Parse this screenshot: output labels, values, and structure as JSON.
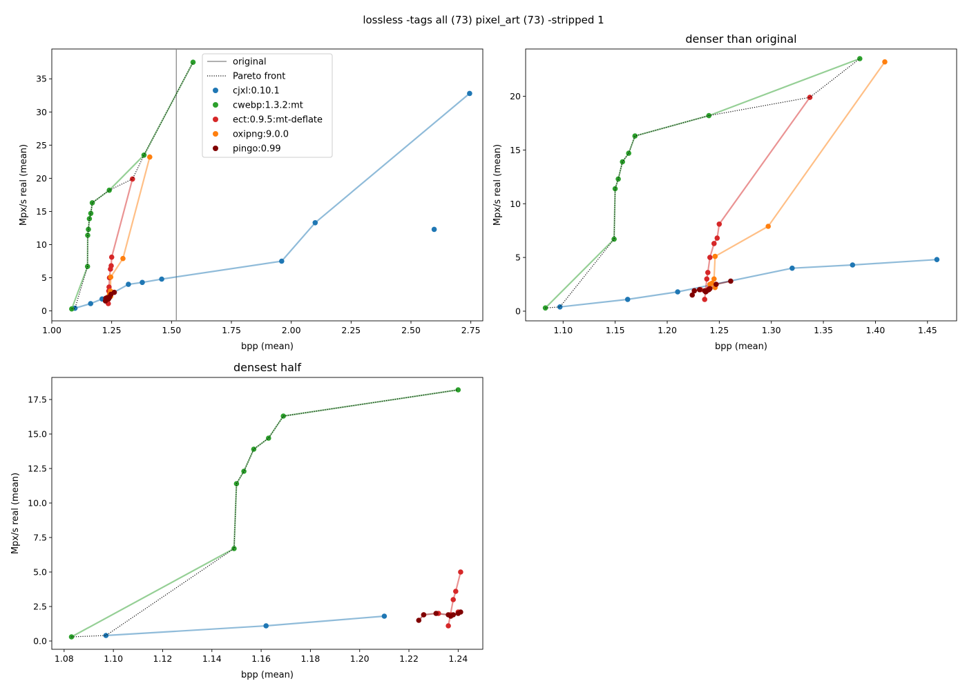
{
  "figure": {
    "suptitle": "lossless -tags all (73) pixel_art (73) -stripped 1"
  },
  "colors": {
    "cjxl": "#1f77b4",
    "cwebp": "#2ca02c",
    "ect": "#d62728",
    "oxipng": "#ff7f0e",
    "pingo": "#800000",
    "original": "#808080",
    "pareto": "#000000"
  },
  "legend": {
    "original": "original",
    "pareto": "Pareto front",
    "cjxl": "cjxl:0.10.1",
    "cwebp": "cwebp:1.3.2:mt",
    "ect": "ect:0.9.5:mt-deflate",
    "oxipng": "oxipng:9.0.0",
    "pingo": "pingo:0.99"
  },
  "chart_data": [
    {
      "type": "line",
      "title": "",
      "xlabel": "bpp (mean)",
      "ylabel": "Mpx/s real (mean)",
      "xlim": [
        1.0,
        2.8
      ],
      "ylim": [
        -1.5,
        39.5
      ],
      "xticks": [
        "1.00",
        "1.25",
        "1.50",
        "1.75",
        "2.00",
        "2.25",
        "2.50",
        "2.75"
      ],
      "yticks": [
        "0",
        "5",
        "10",
        "15",
        "20",
        "25",
        "30",
        "35"
      ],
      "original_bpp": 1.52,
      "legend_position": "upper center",
      "series": [
        {
          "name": "cjxl:0.10.1",
          "key": "cjxl",
          "line": [
            [
              1.097,
              0.4
            ],
            [
              1.162,
              1.1
            ],
            [
              1.21,
              1.8
            ],
            [
              1.32,
              4.0
            ],
            [
              1.378,
              4.3
            ],
            [
              1.459,
              4.8
            ],
            [
              1.96,
              7.5
            ],
            [
              2.1,
              13.3
            ],
            [
              2.745,
              32.8
            ]
          ],
          "extra": [
            [
              2.597,
              12.3
            ]
          ]
        },
        {
          "name": "cwebp:1.3.2:mt",
          "key": "cwebp",
          "line": [
            [
              1.083,
              0.3
            ],
            [
              1.149,
              6.7
            ],
            [
              1.15,
              11.4
            ],
            [
              1.153,
              12.3
            ],
            [
              1.157,
              13.9
            ],
            [
              1.163,
              14.7
            ],
            [
              1.169,
              16.3
            ],
            [
              1.24,
              18.2
            ],
            [
              1.385,
              23.5
            ],
            [
              1.59,
              37.5
            ]
          ],
          "extra": []
        },
        {
          "name": "ect:0.9.5:mt-deflate",
          "key": "ect",
          "line": [
            [
              1.236,
              1.1
            ],
            [
              1.238,
              3.0
            ],
            [
              1.239,
              3.6
            ],
            [
              1.241,
              5.0
            ],
            [
              1.245,
              6.3
            ],
            [
              1.248,
              6.8
            ],
            [
              1.25,
              8.1
            ],
            [
              1.337,
              19.9
            ]
          ],
          "extra": [
            [
              1.226,
              1.9
            ],
            [
              1.232,
              2.0
            ],
            [
              1.237,
              1.9
            ],
            [
              1.24,
              2.1
            ]
          ]
        },
        {
          "name": "oxipng:9.0.0",
          "key": "oxipng",
          "line": [
            [
              1.241,
              2.5
            ],
            [
              1.245,
              3.0
            ],
            [
              1.246,
              5.1
            ],
            [
              1.297,
              7.9
            ],
            [
              1.409,
              23.2
            ]
          ],
          "extra": [
            [
              1.243,
              2.6
            ],
            [
              1.246,
              2.2
            ]
          ]
        },
        {
          "name": "pingo:0.99",
          "key": "pingo",
          "line": [
            [
              1.224,
              1.5
            ],
            [
              1.226,
              1.9
            ],
            [
              1.231,
              2.0
            ],
            [
              1.236,
              1.9
            ],
            [
              1.237,
              1.8
            ],
            [
              1.238,
              1.9
            ],
            [
              1.24,
              2.0
            ],
            [
              1.241,
              2.1
            ],
            [
              1.247,
              2.5
            ],
            [
              1.261,
              2.8
            ]
          ],
          "extra": []
        },
        {
          "name": "Pareto front",
          "key": "pareto",
          "line": [
            [
              1.083,
              0.3
            ],
            [
              1.097,
              0.4
            ],
            [
              1.149,
              6.7
            ],
            [
              1.15,
              11.4
            ],
            [
              1.153,
              12.3
            ],
            [
              1.157,
              13.9
            ],
            [
              1.163,
              14.7
            ],
            [
              1.169,
              16.3
            ],
            [
              1.24,
              18.2
            ],
            [
              1.337,
              19.9
            ],
            [
              1.385,
              23.5
            ],
            [
              1.59,
              37.5
            ]
          ],
          "extra": []
        }
      ]
    },
    {
      "type": "line",
      "title": "denser than original",
      "xlabel": "bpp (mean)",
      "ylabel": "Mpx/s real (mean)",
      "xlim": [
        1.064,
        1.478
      ],
      "ylim": [
        -0.9,
        24.4
      ],
      "xticks": [
        "1.10",
        "1.15",
        "1.20",
        "1.25",
        "1.30",
        "1.35",
        "1.40",
        "1.45"
      ],
      "yticks": [
        "0",
        "5",
        "10",
        "15",
        "20"
      ],
      "series": [
        {
          "name": "cjxl:0.10.1",
          "key": "cjxl",
          "line": [
            [
              1.097,
              0.4
            ],
            [
              1.162,
              1.1
            ],
            [
              1.21,
              1.8
            ],
            [
              1.32,
              4.0
            ],
            [
              1.378,
              4.3
            ],
            [
              1.459,
              4.8
            ]
          ],
          "extra": []
        },
        {
          "name": "cwebp:1.3.2:mt",
          "key": "cwebp",
          "line": [
            [
              1.083,
              0.3
            ],
            [
              1.149,
              6.7
            ],
            [
              1.15,
              11.4
            ],
            [
              1.153,
              12.3
            ],
            [
              1.157,
              13.9
            ],
            [
              1.163,
              14.7
            ],
            [
              1.169,
              16.3
            ],
            [
              1.24,
              18.2
            ],
            [
              1.385,
              23.5
            ]
          ],
          "extra": []
        },
        {
          "name": "ect:0.9.5:mt-deflate",
          "key": "ect",
          "line": [
            [
              1.236,
              1.1
            ],
            [
              1.238,
              3.0
            ],
            [
              1.239,
              3.6
            ],
            [
              1.241,
              5.0
            ],
            [
              1.245,
              6.3
            ],
            [
              1.248,
              6.8
            ],
            [
              1.25,
              8.1
            ],
            [
              1.337,
              19.9
            ]
          ],
          "extra": [
            [
              1.226,
              1.9
            ],
            [
              1.232,
              2.0
            ],
            [
              1.237,
              1.9
            ],
            [
              1.24,
              2.1
            ]
          ]
        },
        {
          "name": "oxipng:9.0.0",
          "key": "oxipng",
          "line": [
            [
              1.241,
              2.5
            ],
            [
              1.245,
              3.0
            ],
            [
              1.246,
              5.1
            ],
            [
              1.297,
              7.9
            ],
            [
              1.409,
              23.2
            ]
          ],
          "extra": [
            [
              1.243,
              2.6
            ],
            [
              1.246,
              2.2
            ]
          ]
        },
        {
          "name": "pingo:0.99",
          "key": "pingo",
          "line": [
            [
              1.224,
              1.5
            ],
            [
              1.226,
              1.9
            ],
            [
              1.231,
              2.0
            ],
            [
              1.236,
              1.9
            ],
            [
              1.237,
              1.8
            ],
            [
              1.238,
              1.9
            ],
            [
              1.24,
              2.0
            ],
            [
              1.241,
              2.1
            ],
            [
              1.247,
              2.5
            ],
            [
              1.261,
              2.8
            ]
          ],
          "extra": []
        },
        {
          "name": "Pareto front",
          "key": "pareto",
          "line": [
            [
              1.083,
              0.3
            ],
            [
              1.097,
              0.4
            ],
            [
              1.149,
              6.7
            ],
            [
              1.15,
              11.4
            ],
            [
              1.153,
              12.3
            ],
            [
              1.157,
              13.9
            ],
            [
              1.163,
              14.7
            ],
            [
              1.169,
              16.3
            ],
            [
              1.24,
              18.2
            ],
            [
              1.337,
              19.9
            ],
            [
              1.385,
              23.5
            ]
          ],
          "extra": []
        }
      ]
    },
    {
      "type": "line",
      "title": "densest half",
      "xlabel": "bpp (mean)",
      "ylabel": "Mpx/s real (mean)",
      "xlim": [
        1.075,
        1.25
      ],
      "ylim": [
        -0.6,
        19.1
      ],
      "xticks": [
        "1.08",
        "1.10",
        "1.12",
        "1.14",
        "1.16",
        "1.18",
        "1.20",
        "1.22",
        "1.24"
      ],
      "yticks": [
        "0.0",
        "2.5",
        "5.0",
        "7.5",
        "10.0",
        "12.5",
        "15.0",
        "17.5"
      ],
      "series": [
        {
          "name": "cjxl:0.10.1",
          "key": "cjxl",
          "line": [
            [
              1.097,
              0.4
            ],
            [
              1.162,
              1.1
            ],
            [
              1.21,
              1.8
            ]
          ],
          "extra": []
        },
        {
          "name": "cwebp:1.3.2:mt",
          "key": "cwebp",
          "line": [
            [
              1.083,
              0.3
            ],
            [
              1.149,
              6.7
            ],
            [
              1.15,
              11.4
            ],
            [
              1.153,
              12.3
            ],
            [
              1.157,
              13.9
            ],
            [
              1.163,
              14.7
            ],
            [
              1.169,
              16.3
            ],
            [
              1.24,
              18.2
            ]
          ],
          "extra": []
        },
        {
          "name": "ect:0.9.5:mt-deflate",
          "key": "ect",
          "line": [
            [
              1.236,
              1.1
            ],
            [
              1.238,
              3.0
            ],
            [
              1.239,
              3.6
            ],
            [
              1.241,
              5.0
            ]
          ],
          "extra": [
            [
              1.226,
              1.9
            ],
            [
              1.232,
              2.0
            ],
            [
              1.237,
              1.9
            ],
            [
              1.24,
              2.1
            ]
          ]
        },
        {
          "name": "pingo:0.99",
          "key": "pingo",
          "line": [
            [
              1.224,
              1.5
            ],
            [
              1.226,
              1.9
            ],
            [
              1.231,
              2.0
            ],
            [
              1.236,
              1.9
            ],
            [
              1.237,
              1.8
            ],
            [
              1.238,
              1.9
            ],
            [
              1.24,
              2.0
            ],
            [
              1.241,
              2.1
            ]
          ],
          "extra": []
        },
        {
          "name": "Pareto front",
          "key": "pareto",
          "line": [
            [
              1.083,
              0.3
            ],
            [
              1.097,
              0.4
            ],
            [
              1.149,
              6.7
            ],
            [
              1.15,
              11.4
            ],
            [
              1.153,
              12.3
            ],
            [
              1.157,
              13.9
            ],
            [
              1.163,
              14.7
            ],
            [
              1.169,
              16.3
            ],
            [
              1.24,
              18.2
            ]
          ],
          "extra": []
        }
      ]
    }
  ]
}
